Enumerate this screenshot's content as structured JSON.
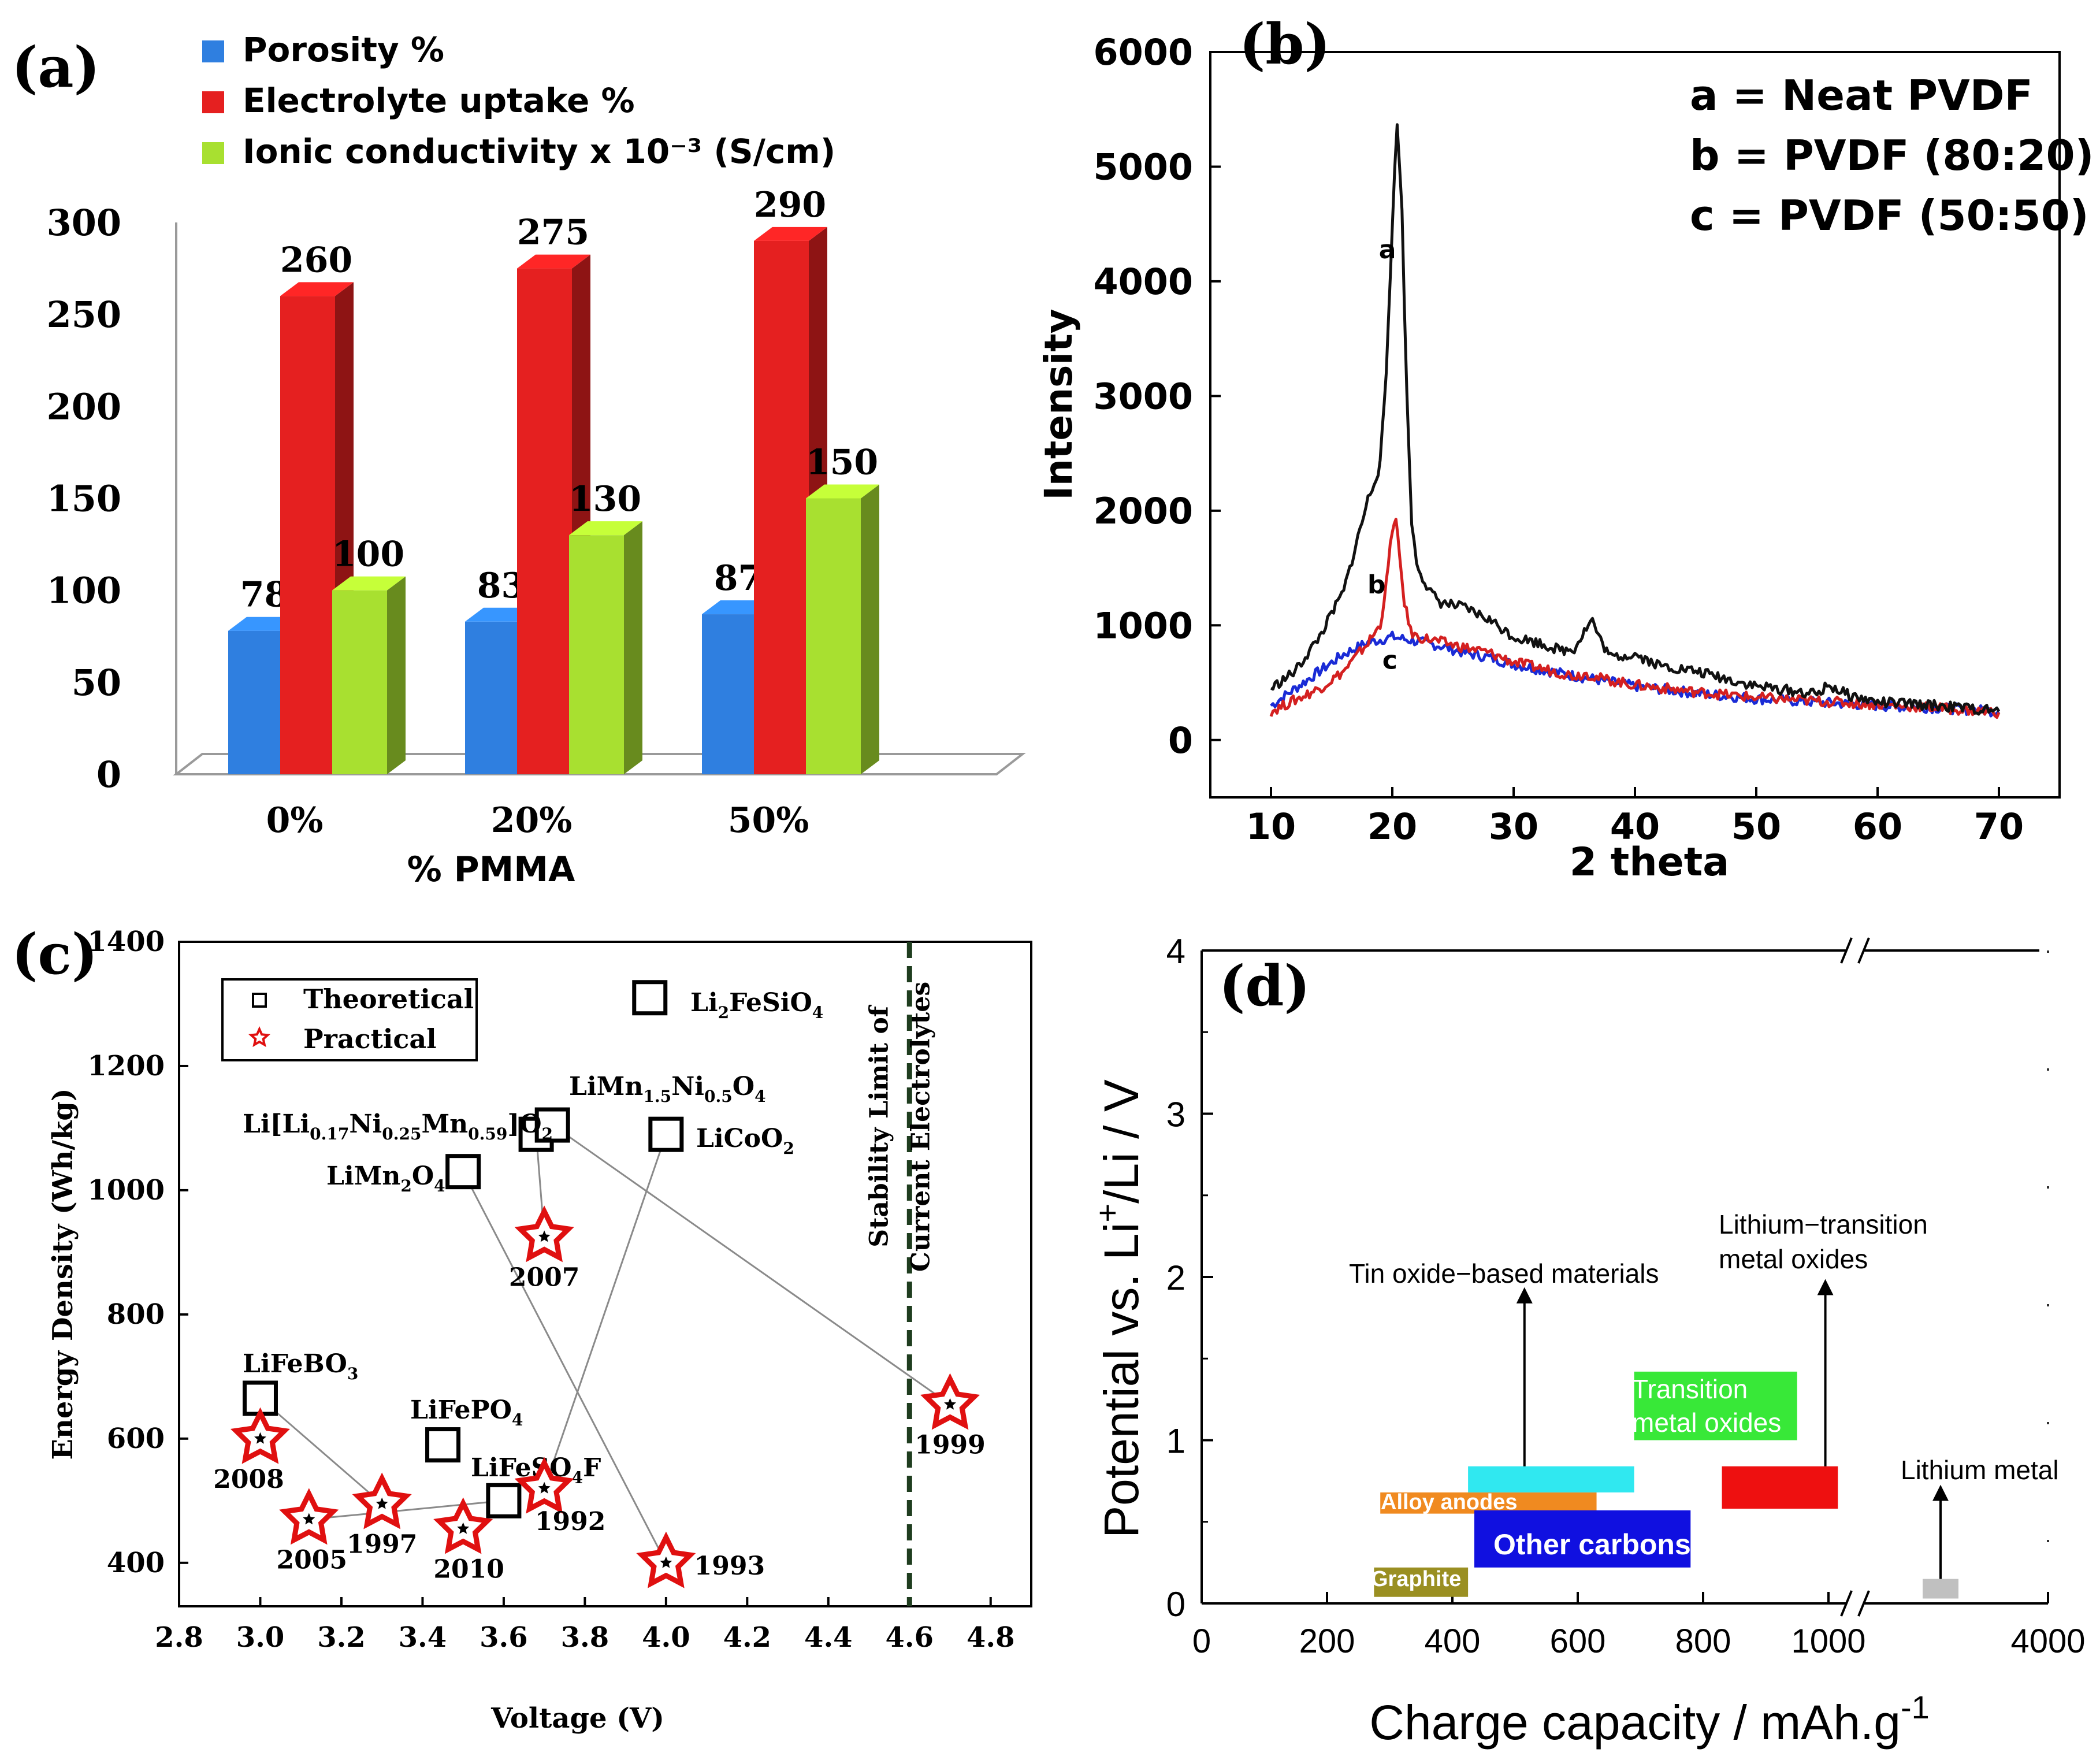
{
  "chart_data": [
    {
      "id": "a",
      "type": "bar",
      "panel_label": "(a)",
      "title": "",
      "xlabel": "% PMMA",
      "ylabel": "",
      "categories": [
        "0%",
        "20%",
        "50%"
      ],
      "series": [
        {
          "name": "Porosity %",
          "color": "#2f7fe0",
          "values": [
            78,
            83,
            87
          ]
        },
        {
          "name": "Electrolyte uptake  %",
          "color": "#e52020",
          "values": [
            260,
            275,
            290
          ]
        },
        {
          "name": "Ionic conductivity x 10⁻³ (S/cm)",
          "color": "#a8e030",
          "values": [
            100,
            130,
            150
          ]
        }
      ],
      "ylim": [
        0,
        300
      ],
      "yticks": [
        "0",
        "50",
        "100",
        "150",
        "200",
        "250",
        "300"
      ],
      "legend": "top"
    },
    {
      "id": "b",
      "type": "line",
      "panel_label": "(b)",
      "title": "",
      "xlabel": "2 theta",
      "ylabel": "Intensity",
      "xlim": [
        5,
        75
      ],
      "ylim": [
        -500,
        6000
      ],
      "xticks": [
        "10",
        "20",
        "30",
        "40",
        "50",
        "60",
        "70"
      ],
      "yticks": [
        "0",
        "1000",
        "2000",
        "3000",
        "4000",
        "5000",
        "6000"
      ],
      "legend_lines": [
        "a = Neat PVDF",
        "b = PVDF (80:20)",
        "c = PVDF (50:50)"
      ],
      "series": [
        {
          "name": "a",
          "color": "#111111",
          "x": [
            10,
            12,
            14,
            16,
            17,
            18,
            19,
            19.5,
            20,
            20.4,
            20.8,
            21.2,
            21.6,
            22,
            23,
            24,
            26,
            28,
            30,
            32,
            34,
            35,
            36,
            36.5,
            37,
            38,
            40,
            41,
            42,
            45,
            50,
            55,
            56,
            57,
            58,
            60,
            65,
            70
          ],
          "y": [
            450,
            600,
            900,
            1300,
            1700,
            2100,
            2400,
            3200,
            4500,
            5400,
            4600,
            3000,
            1900,
            1550,
            1300,
            1200,
            1150,
            1050,
            900,
            850,
            780,
            800,
            980,
            1050,
            900,
            720,
            750,
            700,
            650,
            600,
            470,
            400,
            480,
            420,
            380,
            330,
            300,
            250
          ]
        },
        {
          "name": "b",
          "color": "#d42020",
          "x": [
            10,
            12,
            14,
            16,
            18,
            19,
            19.5,
            20,
            20.3,
            20.6,
            21,
            21.5,
            22,
            23,
            25,
            28,
            30,
            35,
            36,
            37,
            40,
            45,
            50,
            55,
            60,
            65,
            70
          ],
          "y": [
            250,
            350,
            450,
            600,
            850,
            1000,
            1350,
            1850,
            1900,
            1600,
            1200,
            950,
            900,
            880,
            830,
            760,
            680,
            560,
            580,
            540,
            480,
            420,
            370,
            340,
            310,
            280,
            240
          ]
        },
        {
          "name": "c",
          "color": "#1a2bd6",
          "x": [
            10,
            12,
            14,
            16,
            18,
            20,
            21,
            22,
            24,
            26,
            28,
            30,
            35,
            40,
            45,
            50,
            55,
            60,
            65,
            70
          ],
          "y": [
            300,
            450,
            600,
            750,
            850,
            900,
            880,
            860,
            820,
            760,
            720,
            660,
            560,
            470,
            410,
            360,
            330,
            300,
            280,
            250
          ]
        }
      ],
      "curve_labels": [
        {
          "text": "a",
          "x": 19.6,
          "y": 4200
        },
        {
          "text": "b",
          "x": 18.7,
          "y": 1280
        },
        {
          "text": "c",
          "x": 19.8,
          "y": 620
        }
      ]
    },
    {
      "id": "c",
      "type": "scatter",
      "panel_label": "(c)",
      "title": "",
      "xlabel": "Voltage (V)",
      "ylabel": "Energy Density (Wh/kg)",
      "xlim": [
        2.8,
        4.9
      ],
      "ylim": [
        330,
        1400
      ],
      "xticks": [
        "2.8",
        "3.0",
        "3.2",
        "3.4",
        "3.6",
        "3.8",
        "4.0",
        "4.2",
        "4.4",
        "4.6",
        "4.8"
      ],
      "yticks": [
        "400",
        "600",
        "800",
        "1000",
        "1200",
        "1400"
      ],
      "legend_entries": [
        "Theoretical",
        "Practical"
      ],
      "vline": {
        "x": 4.6,
        "label_lines": [
          "Stability Limit of",
          "Current Electrolytes"
        ]
      },
      "theoretical": [
        {
          "x": 3.0,
          "y": 665,
          "label_main": "LiFeBO",
          "label_sub": "3"
        },
        {
          "x": 3.45,
          "y": 590,
          "label_main": "LiFePO",
          "label_sub": "4"
        },
        {
          "x": 3.6,
          "y": 500,
          "label_main": "LiFeSO",
          "label_sub": "4",
          "label_tail": "F"
        },
        {
          "x": 3.5,
          "y": 1030,
          "label_main": "LiMn",
          "label_sub": "2",
          "label_tail": "O",
          "label_sub2": "4"
        },
        {
          "x": 3.68,
          "y": 1090,
          "label_full": "Li[Li0.17Ni0.25Mn0.59]O2"
        },
        {
          "x": 3.72,
          "y": 1105,
          "label_full": "LiMn1.5Ni0.5O4"
        },
        {
          "x": 4.0,
          "y": 1090,
          "label_main": "LiCoO",
          "label_sub": "2"
        },
        {
          "x": 3.96,
          "y": 1310,
          "label_main": "Li",
          "label_sub": "2",
          "label_tail": "FeSiO",
          "label_sub2": "4"
        }
      ],
      "practical": [
        {
          "x": 3.0,
          "y": 600,
          "year": "2008"
        },
        {
          "x": 3.12,
          "y": 470,
          "year": "2005"
        },
        {
          "x": 3.3,
          "y": 495,
          "year": "1997"
        },
        {
          "x": 3.5,
          "y": 455,
          "year": "2010"
        },
        {
          "x": 3.7,
          "y": 520,
          "year": "1992"
        },
        {
          "x": 3.7,
          "y": 925,
          "year": "2007"
        },
        {
          "x": 4.0,
          "y": 400,
          "year": "1993"
        },
        {
          "x": 4.7,
          "y": 655,
          "year": "1999"
        }
      ]
    },
    {
      "id": "d",
      "type": "bar",
      "panel_label": "(d)",
      "title": "",
      "xlabel": "Charge capacity / mAh.g-1",
      "ylabel": "Potential vs. Li+/Li / V",
      "xticks": [
        "0",
        "200",
        "400",
        "600",
        "800",
        "1000",
        "4000"
      ],
      "yticks": [
        "0",
        "1",
        "2",
        "3",
        "4"
      ],
      "ylim": [
        0,
        4
      ],
      "regions": [
        {
          "name": "Graphite",
          "x0": 275,
          "x1": 425,
          "y0": 0.04,
          "y1": 0.22,
          "color": "#9a8f22",
          "text_color": "#ffffff"
        },
        {
          "name": "Alloy anodes",
          "x0": 285,
          "x1": 630,
          "y0": 0.55,
          "y1": 0.68,
          "color": "#f08a20",
          "text_color": "#ffffff"
        },
        {
          "name": "Other carbons",
          "x0": 435,
          "x1": 780,
          "y0": 0.22,
          "y1": 0.57,
          "color": "#1010e0",
          "text_color": "#ffffff"
        },
        {
          "name": "",
          "x0": 425,
          "x1": 690,
          "y0": 0.68,
          "y1": 0.84,
          "color": "#30e8f0",
          "text_color": "#ffffff"
        },
        {
          "name": "Transition metal oxides",
          "x0": 690,
          "x1": 950,
          "y0": 1.0,
          "y1": 1.42,
          "color": "#38e838",
          "text_color": "#ffffff"
        },
        {
          "name": "",
          "x0": 830,
          "x1": 1015,
          "y0": 0.58,
          "y1": 0.84,
          "color": "#ee1010",
          "text_color": "#ffffff"
        },
        {
          "name": "",
          "x0": 3300,
          "x1": 3500,
          "y0": 0.03,
          "y1": 0.15,
          "color": "#c0c0c0",
          "text_color": "#ffffff"
        }
      ],
      "annotations": [
        {
          "text": "Tin oxide−based materials",
          "arrow_x": 515,
          "from_y": 0.84,
          "to_y": 1.93
        },
        {
          "text_lines": [
            "Lithium−transition",
            "metal oxides"
          ],
          "arrow_x": 995,
          "from_y": 0.84,
          "to_y": 1.98
        },
        {
          "text": "Lithium metal",
          "arrow_x": 3400,
          "from_y": 0.15,
          "to_y": 0.72
        }
      ]
    }
  ]
}
